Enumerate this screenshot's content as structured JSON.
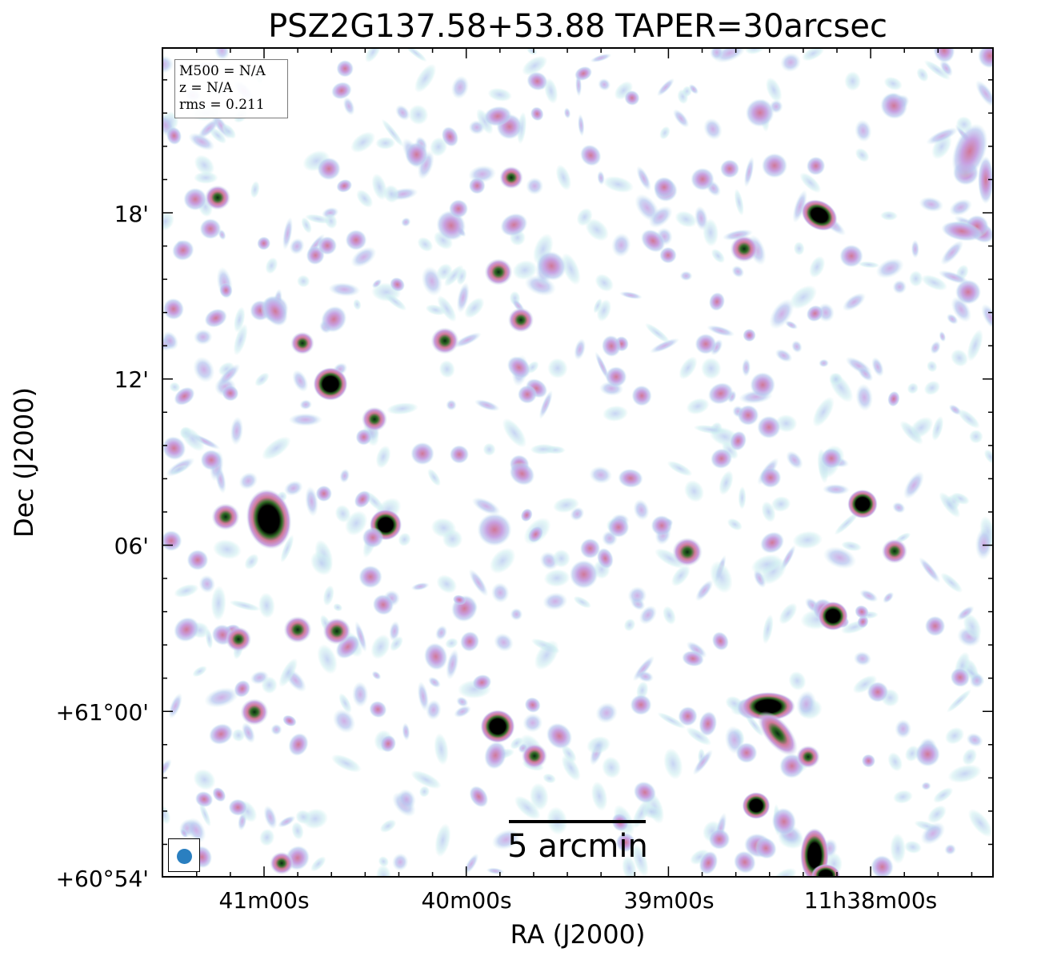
{
  "title": "PSZ2G137.58+53.88 TAPER=30arcsec",
  "info": {
    "m500": "M500 = N/A",
    "z": "z = N/A",
    "rms": "rms = 0.211"
  },
  "axes": {
    "x_label": "RA (J2000)",
    "y_label": "Dec (J2000)",
    "x_ticks": [
      "41m00s",
      "40m00s",
      "39m00s",
      "11h38m00s"
    ],
    "y_ticks": [
      "18'",
      "12'",
      "06'",
      "+61°00'",
      "+60°54'"
    ]
  },
  "scalebar": {
    "label": "5 arcmin"
  },
  "colors": {
    "beam": "#2a7fc0",
    "frame": "#000000",
    "colormap": [
      "#ffffff",
      "#cfeff0",
      "#b9c9f0",
      "#c8a0e0",
      "#d07898",
      "#3f7a2c",
      "#000000"
    ]
  }
}
